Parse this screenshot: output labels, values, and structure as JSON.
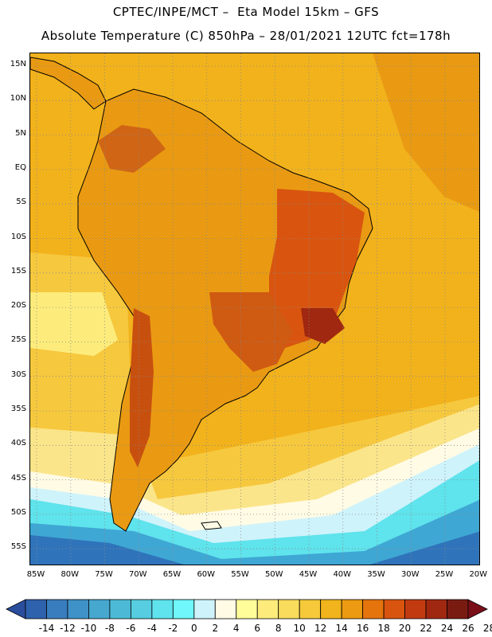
{
  "header": {
    "line1": "CPTEC/INPE/MCT –  Eta Model 15km – GFS",
    "line2": "Absolute Temperature (C) 850hPa – 28/01/2021 12UTC fct=178h"
  },
  "map": {
    "lat_range": [
      -58,
      16
    ],
    "lon_range": [
      -86,
      -20
    ],
    "lat_labels": [
      "15N",
      "10N",
      "5N",
      "EQ",
      "5S",
      "10S",
      "15S",
      "20S",
      "25S",
      "30S",
      "35S",
      "40S",
      "45S",
      "50S",
      "55S"
    ],
    "lon_labels": [
      "85W",
      "80W",
      "75W",
      "70W",
      "65W",
      "60W",
      "55W",
      "50W",
      "45W",
      "40W",
      "35W",
      "30W",
      "25W",
      "20W"
    ],
    "colors": {
      "ocean_warm": "#f2b21c",
      "ocean_mid": "#f6c83e",
      "ocean_cool": "#fbe58a",
      "cold_band": "#4fc9e8",
      "cold_deep": "#3a9fd4",
      "land_hot": "#e0860e",
      "land_hotter": "#cf5a12",
      "land_hottest": "#b8400c",
      "coast": "#000000",
      "grid": "#999999"
    }
  },
  "colorbar": {
    "labels": [
      "-14",
      "-12",
      "-10",
      "-8",
      "-6",
      "-4",
      "-2",
      "0",
      "2",
      "4",
      "6",
      "8",
      "10",
      "12",
      "14",
      "16",
      "18",
      "20",
      "22",
      "24",
      "26",
      "28"
    ],
    "colors": [
      "#2a4d9c",
      "#2f62ad",
      "#3a7dbf",
      "#3f92c8",
      "#46a7cf",
      "#4cbad6",
      "#56cde0",
      "#5fe3ec",
      "#6ff7fb",
      "#cff3fb",
      "#fffbe5",
      "#fffd9a",
      "#fdec7c",
      "#f9dc5c",
      "#f5c93a",
      "#f1b41c",
      "#ec9a12",
      "#e5740d",
      "#d9550f",
      "#c23b10",
      "#a02810",
      "#7a1b12",
      "#7a0f1a"
    ]
  }
}
